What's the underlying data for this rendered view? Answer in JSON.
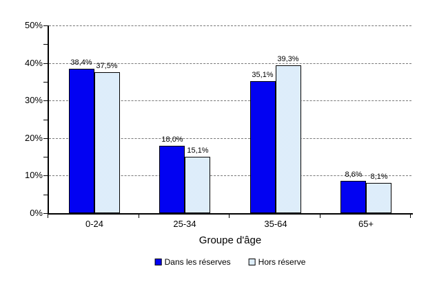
{
  "chart_data": {
    "type": "bar",
    "title": "",
    "xlabel": "Groupe d'âge",
    "ylabel": "",
    "categories": [
      "0-24",
      "25-34",
      "35-64",
      "65+"
    ],
    "series": [
      {
        "name": "Dans les réserves",
        "color": "#0202F2",
        "values": [
          38.4,
          18.0,
          35.1,
          8.6
        ],
        "data_labels": [
          "38,4%",
          "18,0%",
          "35,1%",
          "8,6%"
        ]
      },
      {
        "name": "Hors réserve",
        "color": "#CBE3F7",
        "fill_pattern": "checker",
        "values": [
          37.5,
          15.1,
          39.3,
          8.1
        ],
        "data_labels": [
          "37,5%",
          "15,1%",
          "39,3%",
          "8,1%"
        ]
      }
    ],
    "ylim": [
      0,
      50
    ],
    "ytick_values": [
      0,
      10,
      20,
      30,
      40,
      50
    ],
    "ytick_labels": [
      "0%",
      "10%",
      "20%",
      "30%",
      "40%",
      "50%"
    ],
    "minor_tick_values": [
      5,
      15,
      25,
      35,
      45
    ],
    "grid": "horizontal-dashed",
    "legend_position": "bottom"
  },
  "colors": {
    "series1_fill": "#0202F2",
    "series2_base": "#CBE3F7",
    "series2_alt": "#F0F7FD",
    "gridline": "#767676",
    "axis": "#000000",
    "text": "#000000",
    "background": "#FFFFFF"
  }
}
